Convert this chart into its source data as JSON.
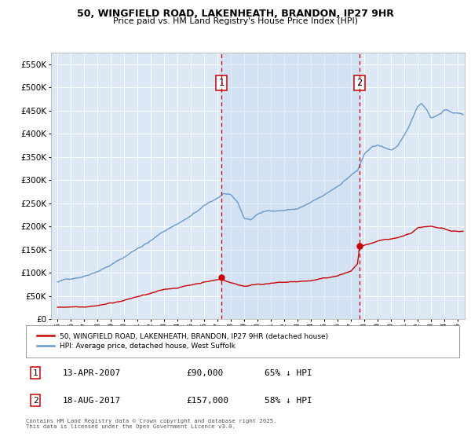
{
  "title_line1": "50, WINGFIELD ROAD, LAKENHEATH, BRANDON, IP27 9HR",
  "title_line2": "Price paid vs. HM Land Registry's House Price Index (HPI)",
  "legend_label_red": "50, WINGFIELD ROAD, LAKENHEATH, BRANDON, IP27 9HR (detached house)",
  "legend_label_blue": "HPI: Average price, detached house, West Suffolk",
  "purchase1_date": "13-APR-2007",
  "purchase1_price": 90000,
  "purchase1_pct": "65% ↓ HPI",
  "purchase1_label": "1",
  "purchase1_x": 2007.28,
  "purchase2_date": "18-AUG-2017",
  "purchase2_price": 157000,
  "purchase2_pct": "58% ↓ HPI",
  "purchase2_label": "2",
  "purchase2_x": 2017.63,
  "footnote": "Contains HM Land Registry data © Crown copyright and database right 2025.\nThis data is licensed under the Open Government Licence v3.0.",
  "ylim_max": 575000,
  "ylim_min": 0,
  "xlim_min": 1994.5,
  "xlim_max": 2025.5,
  "background_color": "#dce8f5",
  "fig_color": "#ffffff",
  "red_color": "#cc0000",
  "blue_color": "#6699cc",
  "vline_color": "#cc0000",
  "grid_color": "#ffffff",
  "shade_color": "#d0e4f5",
  "shade_alpha": 0.5
}
